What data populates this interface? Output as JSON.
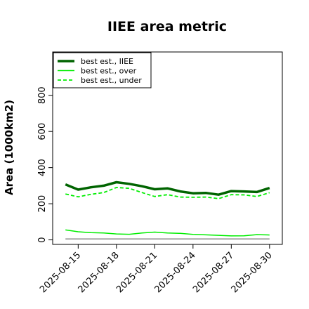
{
  "chart_data": {
    "type": "line",
    "title": "IIEE area metric",
    "xlabel": "",
    "ylabel": "Area (1000km2)",
    "x": [
      "2025-08-14",
      "2025-08-15",
      "2025-08-16",
      "2025-08-17",
      "2025-08-18",
      "2025-08-19",
      "2025-08-20",
      "2025-08-21",
      "2025-08-22",
      "2025-08-23",
      "2025-08-24",
      "2025-08-25",
      "2025-08-26",
      "2025-08-27",
      "2025-08-28",
      "2025-08-29",
      "2025-08-30"
    ],
    "xticks": [
      "2025-08-15",
      "2025-08-18",
      "2025-08-21",
      "2025-08-24",
      "2025-08-27",
      "2025-08-30"
    ],
    "yticks": [
      0,
      200,
      400,
      600,
      800
    ],
    "ylim": [
      -25,
      1040
    ],
    "xlim": [
      "2025-08-13",
      "2025-08-31"
    ],
    "grid": false,
    "legend_position": "top-left",
    "series": [
      {
        "name": "best est., IIEE",
        "color": "#006400",
        "style": "solid",
        "width": 3.5,
        "values": [
          307,
          278,
          291,
          300,
          319,
          310,
          297,
          280,
          285,
          268,
          258,
          260,
          250,
          270,
          268,
          265,
          287
        ]
      },
      {
        "name": "best est., over",
        "color": "#00ee00",
        "style": "solid",
        "width": 1.5,
        "values": [
          55,
          45,
          40,
          38,
          33,
          31,
          38,
          43,
          38,
          36,
          30,
          28,
          25,
          22,
          23,
          29,
          27
        ]
      },
      {
        "name": "best est., under",
        "color": "#00ee00",
        "style": "dashed",
        "width": 1.8,
        "values": [
          254,
          238,
          252,
          262,
          290,
          285,
          262,
          240,
          250,
          237,
          236,
          237,
          228,
          250,
          249,
          240,
          261
        ]
      },
      {
        "name": "",
        "color": "#888888",
        "style": "solid",
        "width": 1.5,
        "values": [
          5,
          5,
          5,
          5,
          5,
          5,
          5,
          5,
          5,
          5,
          5,
          5,
          5,
          5,
          5,
          5,
          5
        ]
      }
    ]
  }
}
